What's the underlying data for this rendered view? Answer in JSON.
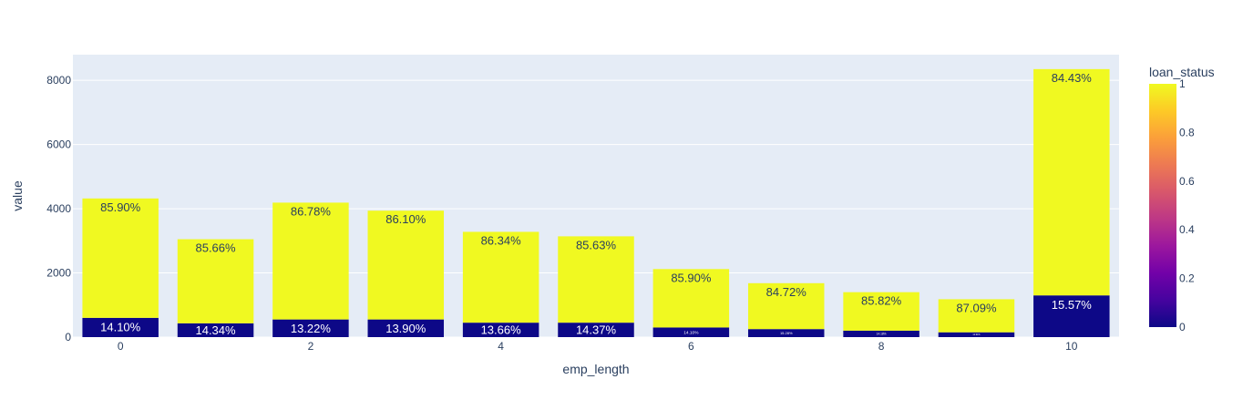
{
  "chart_data": {
    "type": "bar",
    "barmode": "stack",
    "xlabel": "emp_length",
    "ylabel": "value",
    "x": [
      0,
      1,
      2,
      3,
      4,
      5,
      6,
      7,
      8,
      9,
      10
    ],
    "x_tick_labels": [
      "0",
      "2",
      "4",
      "6",
      "8",
      "10"
    ],
    "ylim": [
      0,
      8800
    ],
    "y_tick_labels": [
      "0",
      "2000",
      "4000",
      "6000",
      "8000"
    ],
    "grid": true,
    "series": [
      {
        "loan_status": 0,
        "color": "#0d0887",
        "values": [
          600,
          430,
          550,
          550,
          450,
          450,
          300,
          250,
          200,
          150,
          1300
        ],
        "text": [
          "14.10%",
          "14.34%",
          "13.22%",
          "13.90%",
          "13.66%",
          "14.37%",
          "14.10%",
          "15.28%",
          "14.18%",
          "12.91%",
          "15.57%"
        ]
      },
      {
        "loan_status": 1,
        "color": "#f0f921",
        "values": [
          3720,
          2620,
          3640,
          3390,
          2830,
          2690,
          1820,
          1430,
          1200,
          1030,
          7050
        ],
        "text": [
          "85.90%",
          "85.66%",
          "86.78%",
          "86.10%",
          "86.34%",
          "85.63%",
          "85.90%",
          "84.72%",
          "85.82%",
          "87.09%",
          "84.43%"
        ]
      }
    ],
    "colorbar": {
      "title": "loan_status",
      "range": [
        0,
        1
      ],
      "tick_labels": [
        "0",
        "0.2",
        "0.4",
        "0.6",
        "0.8",
        "1"
      ],
      "colors": [
        "#0d0887",
        "#46039f",
        "#7201a8",
        "#9c179e",
        "#bd3786",
        "#d8576b",
        "#ed7953",
        "#fb9f3a",
        "#fdca26",
        "#f0f921"
      ],
      "position": "right"
    },
    "plot_bg": "#e5ecf6"
  }
}
